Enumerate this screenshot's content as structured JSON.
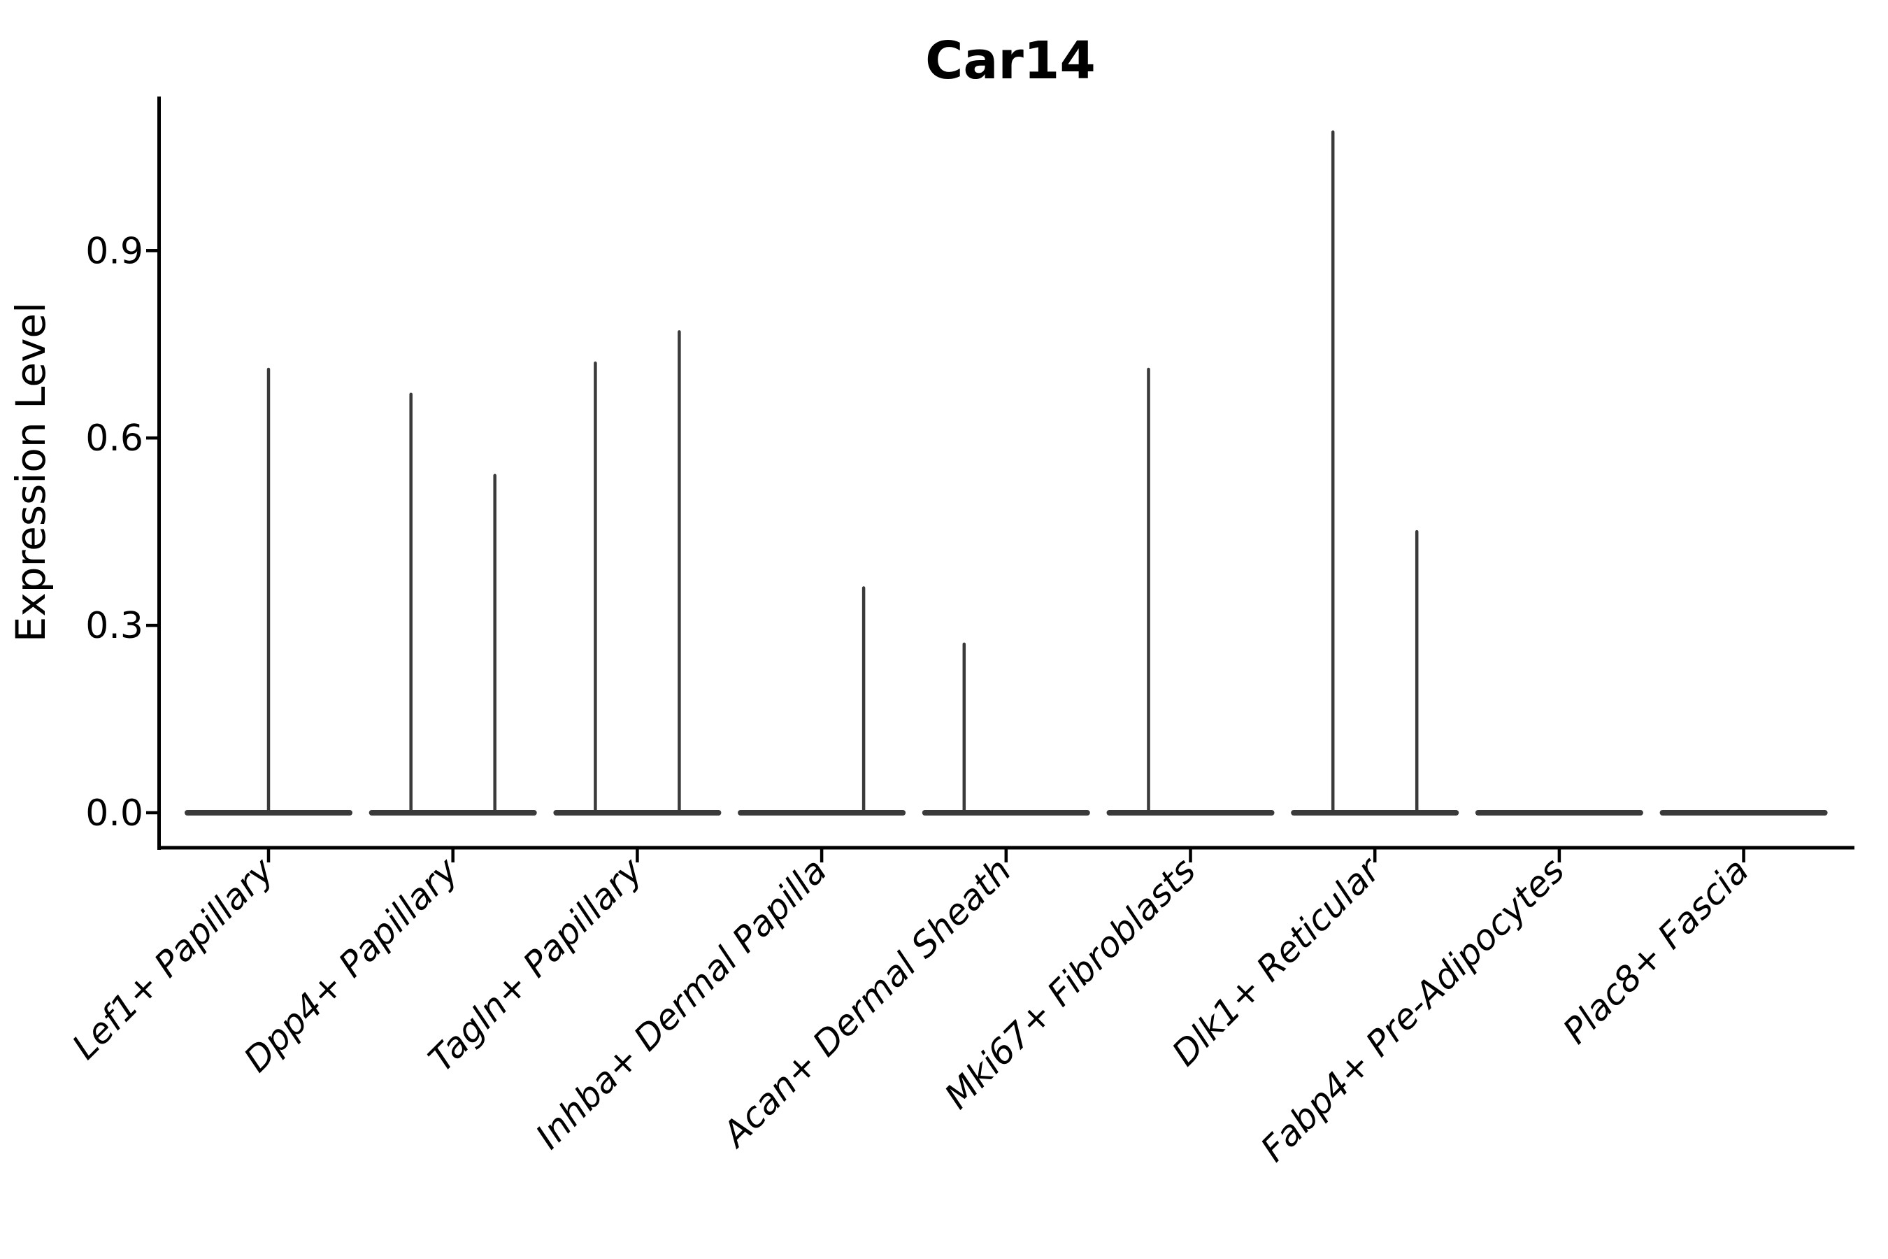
{
  "chart_data": {
    "type": "violin",
    "title": "Car14",
    "ylabel": "Expression Level",
    "xlabel": "",
    "grid": false,
    "legend_position": "none",
    "ytick_labels": [
      "0.0",
      "0.3",
      "0.6",
      "0.9"
    ],
    "ytick_values": [
      0.0,
      0.3,
      0.6,
      0.9
    ],
    "ylim": [
      -0.056,
      1.146
    ],
    "categories": [
      "Lef1+ Papillary",
      "Dpp4+ Papillary",
      "Tagln+ Papillary",
      "Inhba+ Dermal Papilla",
      "Acan+ Dermal Sheath",
      "Mki67+ Fibroblasts",
      "Dlk1+ Reticular",
      "Fabp4+ Pre-Adipocytes",
      "Plac8+ Fascia"
    ],
    "violins": [
      {
        "category": "Lef1+ Papillary",
        "spikes": [
          {
            "position": "center",
            "max": 0.71
          }
        ]
      },
      {
        "category": "Dpp4+ Papillary",
        "spikes": [
          {
            "position": "left",
            "max": 0.67
          },
          {
            "position": "right",
            "max": 0.54
          }
        ]
      },
      {
        "category": "Tagln+ Papillary",
        "spikes": [
          {
            "position": "left",
            "max": 0.72
          },
          {
            "position": "right",
            "max": 0.77
          }
        ]
      },
      {
        "category": "Inhba+ Dermal Papilla",
        "spikes": [
          {
            "position": "right",
            "max": 0.36
          }
        ]
      },
      {
        "category": "Acan+ Dermal Sheath",
        "spikes": [
          {
            "position": "left",
            "max": 0.27
          }
        ]
      },
      {
        "category": "Mki67+ Fibroblasts",
        "spikes": [
          {
            "position": "left",
            "max": 0.71
          }
        ]
      },
      {
        "category": "Dlk1+ Reticular",
        "spikes": [
          {
            "position": "left",
            "max": 1.09
          },
          {
            "position": "right",
            "max": 0.45
          }
        ]
      },
      {
        "category": "Fabp4+ Pre-Adipocytes",
        "spikes": []
      },
      {
        "category": "Plac8+ Fascia",
        "spikes": []
      }
    ]
  },
  "style": {
    "ink": "#000000",
    "violin_color": "#3a3a3a",
    "background": "#ffffff"
  }
}
